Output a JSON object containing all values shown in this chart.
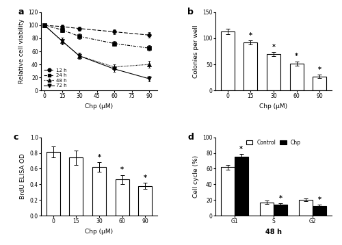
{
  "panel_a": {
    "label": "a",
    "xlabel": "Chp (μM)",
    "ylabel": "Relative cell viability",
    "xlim": [
      -3,
      97
    ],
    "ylim": [
      0,
      120
    ],
    "yticks": [
      0,
      20,
      40,
      60,
      80,
      100,
      120
    ],
    "xticks": [
      0,
      15,
      30,
      45,
      60,
      75,
      90
    ],
    "series": [
      {
        "label": "12 h",
        "x": [
          0,
          15,
          30,
          60,
          90
        ],
        "y": [
          100,
          98,
          95,
          90,
          85
        ],
        "yerr": [
          3,
          3,
          3,
          4,
          4
        ],
        "marker": "o",
        "linestyle_key": "dash",
        "markersize": 4
      },
      {
        "label": "24 h",
        "x": [
          0,
          15,
          30,
          60,
          90
        ],
        "y": [
          100,
          93,
          83,
          72,
          65
        ],
        "yerr": [
          3,
          4,
          4,
          4,
          4
        ],
        "marker": "s",
        "linestyle_key": "dashdot",
        "markersize": 4
      },
      {
        "label": "48 h",
        "x": [
          0,
          15,
          30,
          60,
          90
        ],
        "y": [
          100,
          76,
          53,
          36,
          40
        ],
        "yerr": [
          3,
          5,
          4,
          4,
          5
        ],
        "marker": "^",
        "linestyle_key": "dot",
        "markersize": 4
      },
      {
        "label": "72 h",
        "x": [
          0,
          15,
          30,
          60,
          90
        ],
        "y": [
          100,
          76,
          53,
          33,
          18
        ],
        "yerr": [
          3,
          5,
          5,
          4,
          4
        ],
        "marker": "v",
        "linestyle_key": "solid",
        "markersize": 4
      }
    ]
  },
  "panel_b": {
    "label": "b",
    "xlabel": "Chp (μM)",
    "ylabel": "Colonies per well",
    "ylim": [
      0,
      150
    ],
    "yticks": [
      0,
      50,
      100,
      150
    ],
    "xtick_labels": [
      "0",
      "15",
      "30",
      "60",
      "90"
    ],
    "values": [
      113,
      92,
      70,
      52,
      27
    ],
    "yerr": [
      5,
      4,
      4,
      4,
      3
    ],
    "sig": [
      false,
      true,
      true,
      true,
      true
    ],
    "bar_color": "white",
    "edge_color": "black"
  },
  "panel_c": {
    "label": "c",
    "xlabel": "Chp (μM)",
    "ylabel": "BrdU ELISA OD",
    "ylim": [
      0.0,
      1.0
    ],
    "yticks": [
      0.0,
      0.2,
      0.4,
      0.6,
      0.8,
      1.0
    ],
    "xtick_labels": [
      "0",
      "15",
      "30",
      "60",
      "90"
    ],
    "values": [
      0.81,
      0.74,
      0.62,
      0.46,
      0.38
    ],
    "yerr": [
      0.07,
      0.09,
      0.06,
      0.06,
      0.04
    ],
    "sig": [
      false,
      false,
      true,
      true,
      true
    ],
    "bar_color": "white",
    "edge_color": "black"
  },
  "panel_d": {
    "label": "d",
    "xlabel": "48 h",
    "ylabel": "Cell cycle (%)",
    "ylim": [
      0,
      100
    ],
    "yticks": [
      0,
      20,
      40,
      60,
      80,
      100
    ],
    "xtick_labels": [
      "G1",
      "S",
      "G2"
    ],
    "control_values": [
      62,
      17,
      20
    ],
    "chp_values": [
      75,
      14,
      12
    ],
    "control_err": [
      3,
      2,
      2
    ],
    "chp_err": [
      4,
      2,
      2
    ],
    "sig_control": [
      false,
      false,
      false
    ],
    "sig_chp": [
      true,
      true,
      true
    ],
    "control_color": "white",
    "chp_color": "black",
    "legend_labels": [
      "Control",
      "Chp"
    ]
  }
}
